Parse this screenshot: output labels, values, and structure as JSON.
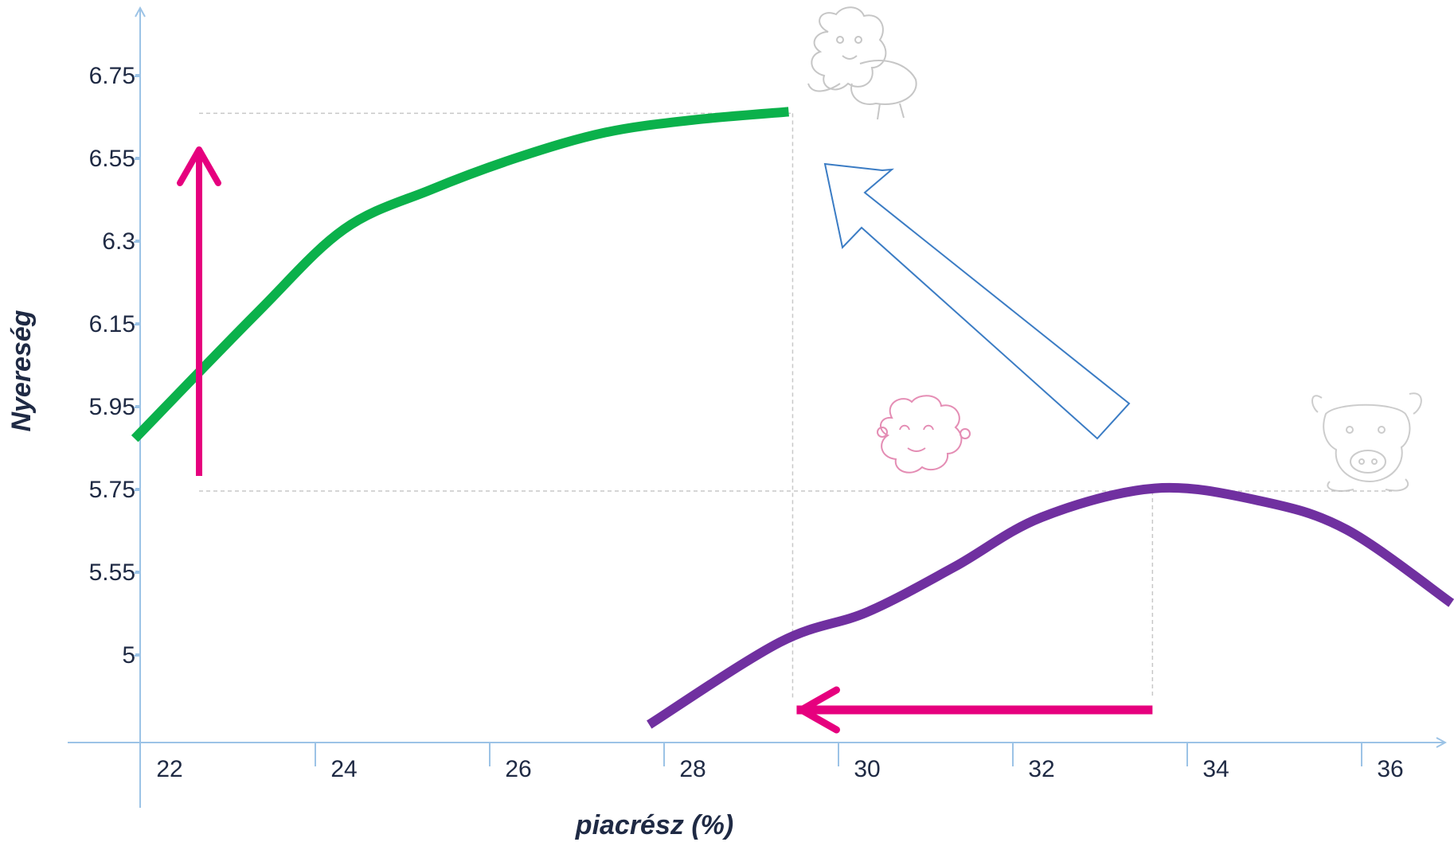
{
  "chart_data": {
    "type": "line",
    "xlabel": "piacrész (%)",
    "ylabel": "Nyereség",
    "x_ticks": [
      "22",
      "24",
      "26",
      "28",
      "30",
      "32",
      "34",
      "36"
    ],
    "y_ticks": [
      "5",
      "5.55",
      "5.75",
      "5.95",
      "6.15",
      "6.3",
      "6.55",
      "6.75"
    ],
    "grid": false,
    "series": [
      {
        "color": "#0bb14b",
        "points": [
          {
            "x": 21.6,
            "y": 5.94
          },
          {
            "x": 23.0,
            "y": 6.22
          },
          {
            "x": 24.0,
            "y": 6.42
          },
          {
            "x": 25.0,
            "y": 6.54
          },
          {
            "x": 26.0,
            "y": 6.62
          },
          {
            "x": 27.0,
            "y": 6.68
          },
          {
            "x": 28.0,
            "y": 6.71
          },
          {
            "x": 29.1,
            "y": 6.73
          }
        ]
      },
      {
        "color": "#7030a0",
        "points": [
          {
            "x": 27.5,
            "y": 4.86
          },
          {
            "x": 29.0,
            "y": 5.27
          },
          {
            "x": 30.0,
            "y": 5.47
          },
          {
            "x": 31.0,
            "y": 5.63
          },
          {
            "x": 32.0,
            "y": 5.75
          },
          {
            "x": 33.3,
            "y": 5.82
          },
          {
            "x": 34.5,
            "y": 5.79
          },
          {
            "x": 35.5,
            "y": 5.72
          },
          {
            "x": 36.7,
            "y": 5.53
          }
        ]
      }
    ],
    "reference_lines": {
      "green_max": {
        "x": 29.1,
        "y": 6.73
      },
      "purple_max": {
        "x": 33.3,
        "y": 5.82
      }
    },
    "annotations": {
      "vertical_arrow": {
        "color": "#e6007e",
        "from_y": 5.82,
        "to_y": 6.6,
        "x": 22.3
      },
      "horizontal_arrow": {
        "color": "#e6007e",
        "from_x": 33.3,
        "to_x": 29.1
      },
      "shift_arrow": {
        "color": "#3b7cc4",
        "direction": "up-left"
      }
    },
    "decorations": [
      "sheep-icon",
      "sheep-face-icon",
      "bull-icon"
    ]
  }
}
